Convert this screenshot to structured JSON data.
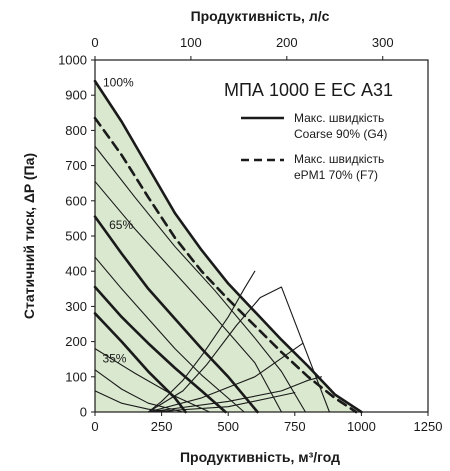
{
  "chart_data": {
    "type": "line",
    "title": "МПА 1000 Е ЕС А31",
    "xlabel": "Продуктивність, м³/год",
    "x2label": "Продуктивність, л/с",
    "ylabel": "Статичний тиск, ΔP (Па)",
    "xlim": [
      0,
      1250
    ],
    "x2lim": [
      0,
      347.2
    ],
    "ylim": [
      0,
      1000
    ],
    "x_ticks": [
      0,
      250,
      500,
      750,
      1000,
      1250
    ],
    "x_tick_labels": [
      "0",
      "250",
      "500",
      "750",
      "1000",
      "1250"
    ],
    "x2_ticks": [
      0,
      100,
      200,
      300
    ],
    "x2_tick_labels": [
      "0",
      "100",
      "200",
      "300"
    ],
    "y_ticks": [
      0,
      100,
      200,
      300,
      400,
      500,
      600,
      700,
      800,
      900,
      1000
    ],
    "y_tick_labels": [
      "0",
      "100",
      "200",
      "300",
      "400",
      "500",
      "600",
      "700",
      "800",
      "900",
      "1000"
    ],
    "grid": false,
    "legend_position": "top-right",
    "legend": [
      {
        "label_line1": "Макс. швидкість",
        "label_line2": "Coarse 90% (G4)",
        "style": "solid"
      },
      {
        "label_line1": "Макс. швидкість",
        "label_line2": "ePM1 70% (F7)",
        "style": "dashed"
      }
    ],
    "curve_labels": [
      {
        "text": "100%",
        "x": 30,
        "y": 925
      },
      {
        "text": "65%",
        "x": 53,
        "y": 520
      },
      {
        "text": "35%",
        "x": 28,
        "y": 140
      }
    ],
    "area_fill": {
      "color": "#d9e8cf",
      "x": [
        0,
        100,
        200,
        300,
        400,
        500,
        600,
        700,
        800,
        900,
        1000
      ],
      "y": [
        940,
        825,
        695,
        565,
        460,
        365,
        285,
        205,
        130,
        50,
        0
      ]
    },
    "series": [
      {
        "name": "Макс. швидкість Coarse 90% (G4)",
        "style": "solid",
        "weight": "bold",
        "x": [
          0,
          100,
          200,
          300,
          400,
          500,
          600,
          700,
          800,
          900,
          1000
        ],
        "y": [
          940,
          825,
          695,
          565,
          460,
          365,
          285,
          205,
          130,
          50,
          0
        ]
      },
      {
        "name": "Макс. швидкість ePM1 70% (F7)",
        "style": "dashed",
        "weight": "bold",
        "x": [
          0,
          100,
          200,
          300,
          400,
          500,
          600,
          700,
          800,
          900,
          980
        ],
        "y": [
          835,
          730,
          610,
          495,
          400,
          320,
          245,
          170,
          100,
          40,
          0
        ]
      },
      {
        "style": "solid",
        "weight": "thin",
        "x": [
          0,
          150,
          300,
          450,
          600,
          700,
          790
        ],
        "y": [
          755,
          610,
          470,
          345,
          210,
          115,
          0
        ]
      },
      {
        "style": "solid",
        "weight": "thin",
        "x": [
          0,
          150,
          300,
          450,
          600,
          700
        ],
        "y": [
          655,
          520,
          395,
          270,
          140,
          0
        ]
      },
      {
        "style": "solid",
        "weight": "bold",
        "x": [
          0,
          100,
          200,
          300,
          400,
          500,
          610
        ],
        "y": [
          555,
          450,
          350,
          265,
          180,
          100,
          0
        ]
      },
      {
        "style": "solid",
        "weight": "thin",
        "x": [
          0,
          100,
          200,
          300,
          400,
          560
        ],
        "y": [
          440,
          350,
          265,
          180,
          105,
          0
        ]
      },
      {
        "style": "solid",
        "weight": "bold",
        "x": [
          0,
          100,
          200,
          300,
          400,
          490
        ],
        "y": [
          355,
          270,
          195,
          125,
          60,
          0
        ]
      },
      {
        "style": "solid",
        "weight": "bold",
        "x": [
          0,
          100,
          200,
          300,
          340
        ],
        "y": [
          280,
          200,
          115,
          40,
          0
        ]
      },
      {
        "style": "solid",
        "weight": "thin",
        "x": [
          0,
          150,
          300,
          430
        ],
        "y": [
          180,
          110,
          45,
          0
        ]
      },
      {
        "style": "solid",
        "weight": "thin",
        "x": [
          0,
          100,
          200,
          330
        ],
        "y": [
          120,
          65,
          25,
          0
        ]
      },
      {
        "style": "solid",
        "weight": "thin",
        "x": [
          0,
          100,
          200,
          300
        ],
        "y": [
          60,
          25,
          8,
          0
        ]
      },
      {
        "style": "solid",
        "weight": "thin",
        "x": [
          200,
          330,
          420,
          530,
          620,
          700,
          880
        ],
        "y": [
          0,
          60,
          135,
          245,
          325,
          355,
          0
        ]
      },
      {
        "style": "solid",
        "weight": "thin",
        "x": [
          200,
          250,
          330,
          405,
          500,
          560,
          600
        ],
        "y": [
          0,
          30,
          90,
          165,
          270,
          350,
          400
        ]
      },
      {
        "style": "solid",
        "weight": "thin",
        "x": [
          200,
          400,
          600,
          780
        ],
        "y": [
          0,
          40,
          100,
          195
        ]
      },
      {
        "style": "solid",
        "weight": "thin",
        "x": [
          200,
          500,
          700,
          800,
          850
        ],
        "y": [
          0,
          30,
          60,
          90,
          100
        ]
      },
      {
        "style": "solid",
        "weight": "thin",
        "x": [
          200,
          500,
          750
        ],
        "y": [
          0,
          15,
          55
        ]
      }
    ]
  }
}
